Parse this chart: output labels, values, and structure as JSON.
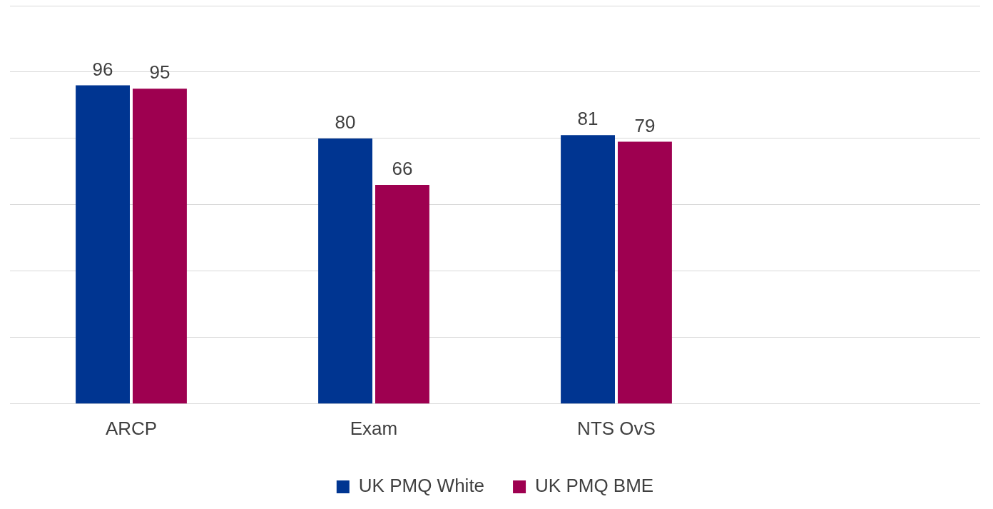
{
  "chart_data": {
    "type": "bar",
    "categories": [
      "ARCP",
      "Exam",
      "NTS OvS",
      null
    ],
    "series": [
      {
        "name": "UK PMQ White",
        "color": "#003591",
        "values": [
          96,
          80,
          81,
          null
        ]
      },
      {
        "name": "UK PMQ BME",
        "color": "#9e0050",
        "values": [
          95,
          66,
          79,
          null
        ]
      }
    ],
    "ylim": [
      0,
      120
    ],
    "yticks": [
      {
        "value": 0,
        "label": null
      },
      {
        "value": 20,
        "label": null
      },
      {
        "value": 40,
        "label": null
      },
      {
        "value": 60,
        "label": null
      },
      {
        "value": 80,
        "label": null
      },
      {
        "value": 100,
        "label": null
      },
      {
        "value": 120,
        "label": null
      }
    ],
    "tick_labels": "x",
    "grid": "y",
    "legend": "bottom",
    "data_labels": true
  }
}
